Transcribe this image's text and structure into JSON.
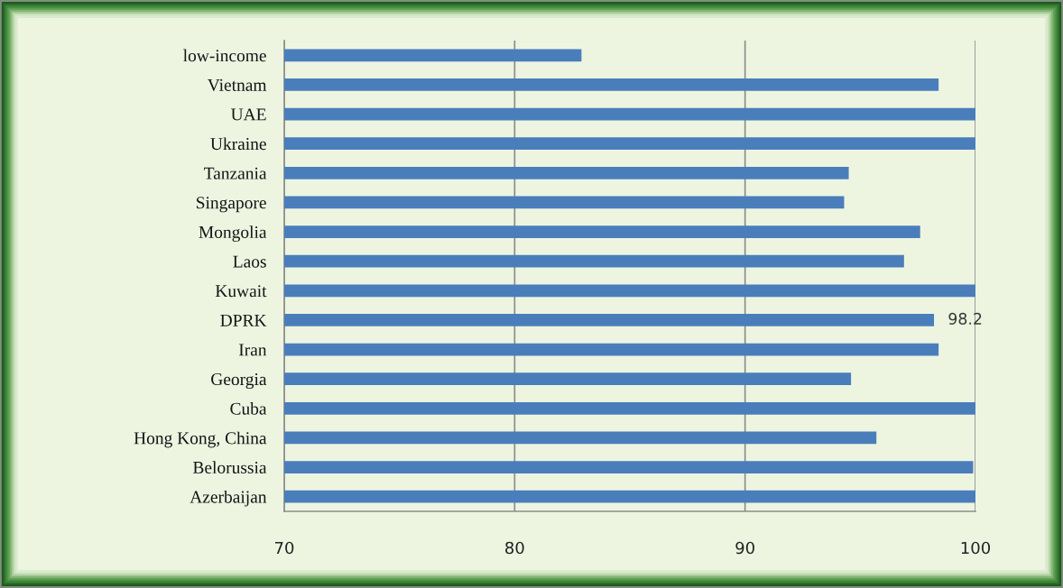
{
  "chart_data": {
    "type": "bar",
    "orientation": "horizontal",
    "categories": [
      "low-income",
      "Vietnam",
      "UAE",
      "Ukraine",
      "Tanzania",
      "Singapore",
      "Mongolia",
      "Laos",
      "Kuwait",
      "DPRK",
      "Iran",
      "Georgia",
      "Cuba",
      "Hong Kong, China",
      "Belorussia",
      "Azerbaijan"
    ],
    "values": [
      82.9,
      98.4,
      100,
      100,
      94.5,
      94.3,
      97.6,
      96.9,
      100,
      98.2,
      98.4,
      94.6,
      100,
      95.7,
      99.9,
      100
    ],
    "color": "#4a7ebb",
    "xlim": [
      70,
      100
    ],
    "xticks": [
      70,
      80,
      90,
      100
    ],
    "grid": "x",
    "value_labels": [
      null,
      null,
      null,
      null,
      null,
      null,
      null,
      null,
      null,
      "98.2",
      null,
      null,
      null,
      null,
      null,
      null
    ]
  }
}
